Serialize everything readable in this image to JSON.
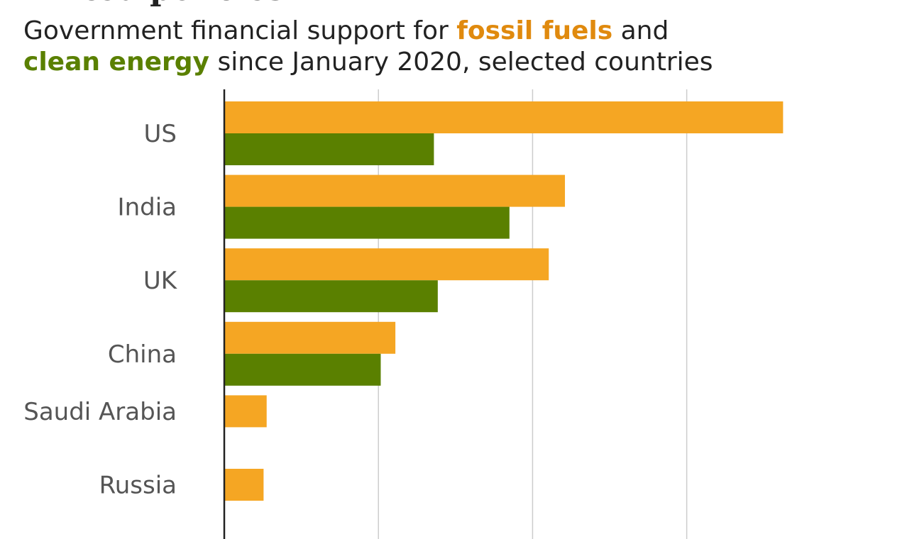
{
  "header": {
    "cut_title": "limited policies",
    "subtitle_part1": "Government financial support for ",
    "subtitle_fossil": "fossil fuels",
    "subtitle_part2": " and",
    "subtitle_clean": "clean energy",
    "subtitle_part3": " since January 2020, selected countries"
  },
  "colors": {
    "fossil": "#F5A623",
    "fossil_text": "#E08A0E",
    "clean": "#5A8000",
    "clean_text": "#5A8000",
    "grid": "#CCCCCC",
    "axis": "#222222",
    "label": "#555555"
  },
  "chart_data": {
    "type": "bar",
    "orientation": "horizontal",
    "categories": [
      "US",
      "India",
      "UK",
      "China",
      "Saudi Arabia",
      "Russia"
    ],
    "series": [
      {
        "name": "fossil fuels",
        "color": "#F5A623",
        "values": [
          72.5,
          44.2,
          42.1,
          22.2,
          5.5,
          5.1
        ]
      },
      {
        "name": "clean energy",
        "color": "#5A8000",
        "values": [
          27.2,
          37.0,
          27.7,
          20.3,
          0,
          0
        ]
      }
    ],
    "xlim": [
      0,
      86
    ],
    "xticks": [
      0,
      20,
      40,
      60
    ],
    "grid": true,
    "tick_labels_visible": false
  }
}
